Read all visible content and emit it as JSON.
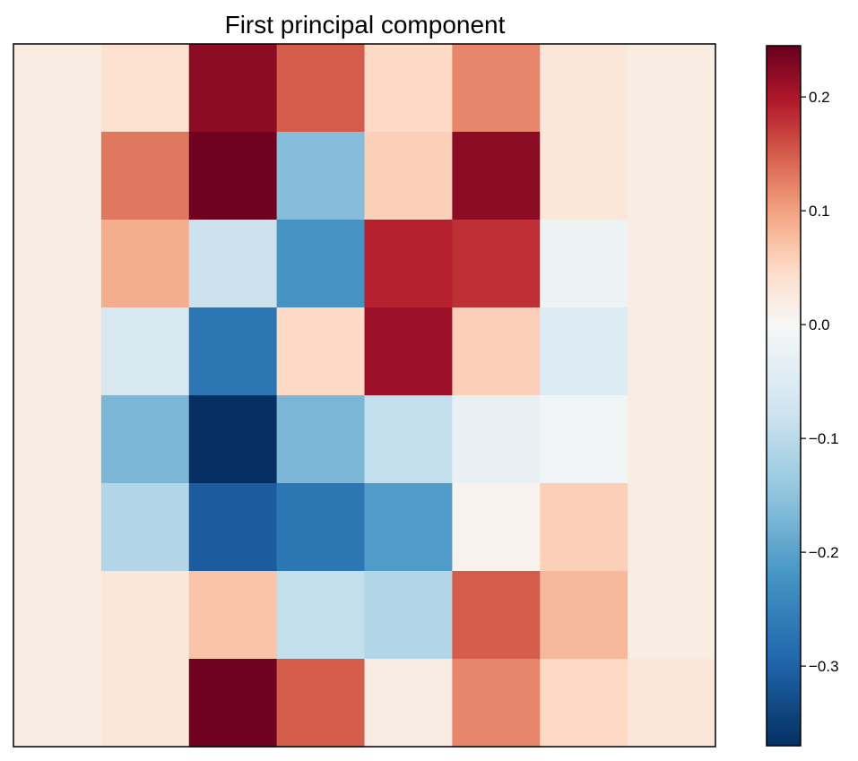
{
  "chart_data": {
    "type": "heatmap",
    "title": "First principal component",
    "rows": 8,
    "cols": 8,
    "values": [
      [
        0.02,
        0.04,
        0.22,
        0.15,
        0.05,
        0.12,
        0.03,
        0.02
      ],
      [
        0.02,
        0.13,
        0.24,
        -0.16,
        0.06,
        0.22,
        0.03,
        0.02
      ],
      [
        0.02,
        0.09,
        -0.08,
        -0.22,
        0.19,
        0.18,
        -0.02,
        0.02
      ],
      [
        0.02,
        -0.06,
        -0.27,
        0.05,
        0.21,
        0.06,
        -0.05,
        0.02
      ],
      [
        0.02,
        -0.17,
        -0.37,
        -0.17,
        -0.09,
        -0.03,
        -0.01,
        0.02
      ],
      [
        0.02,
        -0.11,
        -0.31,
        -0.27,
        -0.21,
        0.01,
        0.06,
        0.02
      ],
      [
        0.02,
        0.03,
        0.07,
        -0.09,
        -0.11,
        0.15,
        0.08,
        0.02
      ],
      [
        0.02,
        0.03,
        0.24,
        0.15,
        0.02,
        0.12,
        0.05,
        0.03
      ]
    ],
    "vmin": -0.37,
    "vmax": 0.245,
    "colormap": "RdBu_r",
    "colorbar": {
      "ticks": [
        0.2,
        0.1,
        0.0,
        -0.1,
        -0.2,
        -0.3
      ],
      "tick_labels": [
        "0.2",
        "0.1",
        "0.0",
        "−0.1",
        "−0.2",
        "−0.3"
      ]
    },
    "xlabel": "",
    "ylabel": "",
    "axis_ticks_visible": false,
    "grid": false
  }
}
